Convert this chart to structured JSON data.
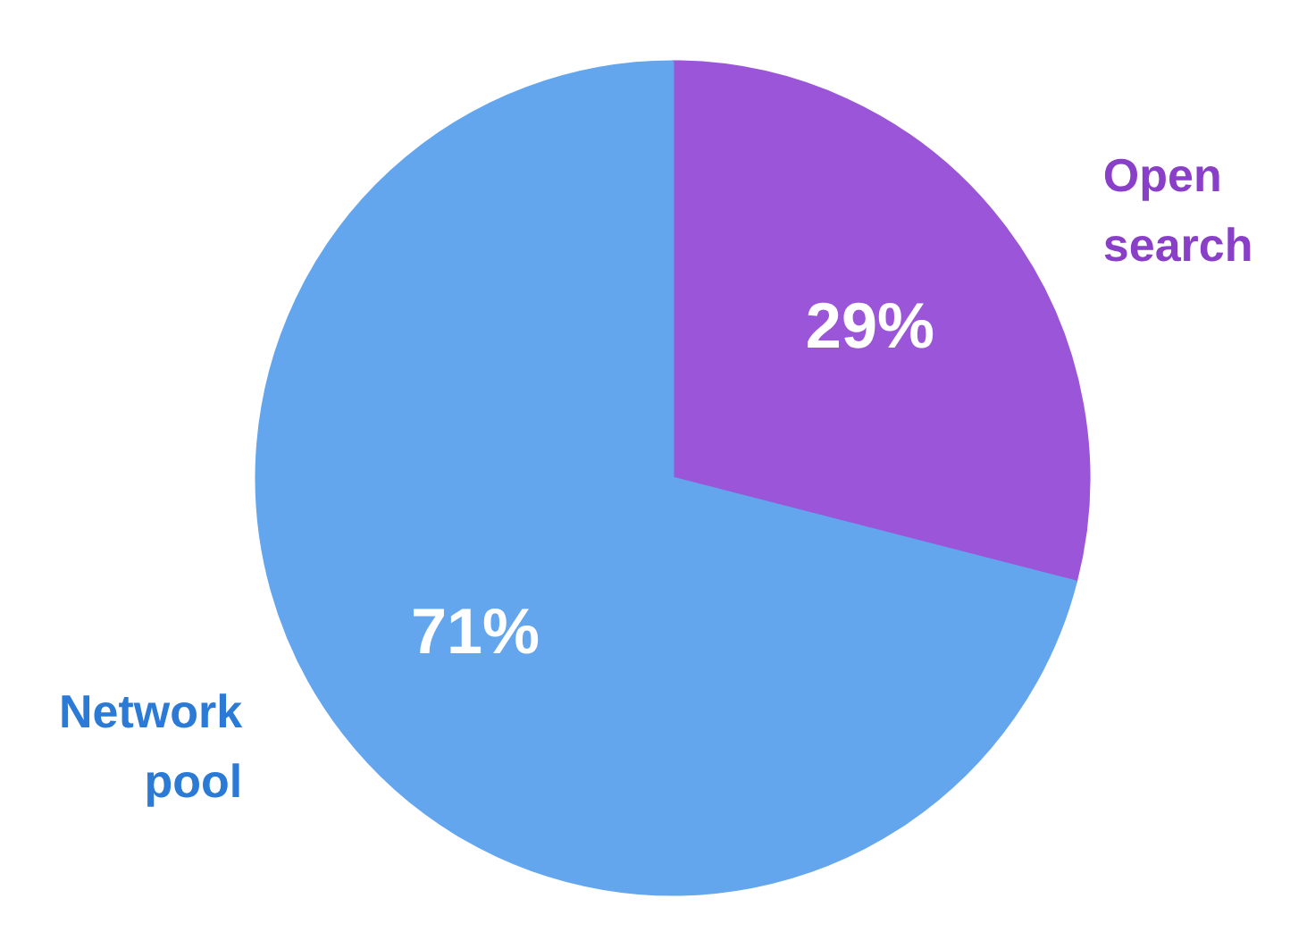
{
  "chart_data": {
    "type": "pie",
    "categories": [
      "Open search",
      "Network pool"
    ],
    "values": [
      29,
      71
    ],
    "colors": [
      "#9b55d8",
      "#63a6ee"
    ],
    "value_labels": [
      "29%",
      "71%"
    ]
  }
}
